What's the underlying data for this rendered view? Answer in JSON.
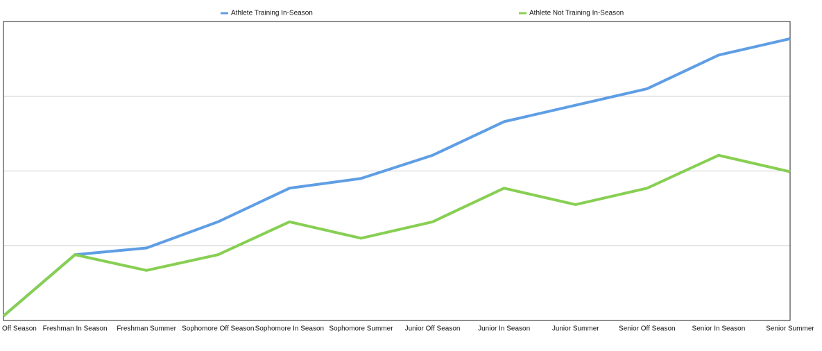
{
  "chart_data": {
    "type": "line",
    "categories": [
      "Off Season",
      "Freshman In Season",
      "Freshman Summer",
      "Sophomore Off Season",
      "Sophomore In Season",
      "Sophomore Summer",
      "Junior Off Season",
      "Junior In Season",
      "Junior Summer",
      "Senior Off Season",
      "Senior In Season",
      "Senior Summer"
    ],
    "series": [
      {
        "name": "Athlete Training In-Season",
        "color": "#5f9ee4",
        "values": [
          0.06,
          0.88,
          0.97,
          1.32,
          1.77,
          1.9,
          2.21,
          2.66,
          2.88,
          3.1,
          3.55,
          3.77
        ]
      },
      {
        "name": "Athlete Not Training In-Season",
        "color": "#87cf52",
        "values": [
          0.06,
          0.88,
          0.67,
          0.88,
          1.32,
          1.1,
          1.32,
          1.77,
          1.55,
          1.77,
          2.21,
          1.99
        ]
      }
    ],
    "ylim": [
      0,
      4
    ],
    "yticks": [
      1,
      2,
      3
    ],
    "grid": true
  }
}
